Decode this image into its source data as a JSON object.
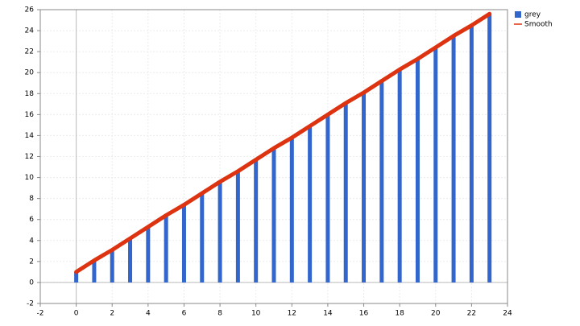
{
  "chart_data": {
    "type": "bar",
    "x": [
      0,
      1,
      2,
      3,
      4,
      5,
      6,
      7,
      8,
      9,
      10,
      11,
      12,
      13,
      14,
      15,
      16,
      17,
      18,
      19,
      20,
      21,
      22,
      23
    ],
    "series": [
      {
        "name": "grey",
        "type": "bar",
        "color": "#3366cc",
        "values": [
          1,
          2.1,
          3.1,
          4.2,
          5.3,
          6.4,
          7.4,
          8.5,
          9.6,
          10.6,
          11.7,
          12.8,
          13.8,
          14.9,
          16,
          17.1,
          18.1,
          19.2,
          20.3,
          21.3,
          22.4,
          23.5,
          24.5,
          25.6
        ]
      },
      {
        "name": "Smooth",
        "type": "line",
        "color": "#dd3311",
        "values": [
          1,
          2.1,
          3.1,
          4.2,
          5.3,
          6.4,
          7.4,
          8.5,
          9.6,
          10.6,
          11.7,
          12.8,
          13.8,
          14.9,
          16,
          17.1,
          18.1,
          19.2,
          20.3,
          21.3,
          22.4,
          23.5,
          24.5,
          25.6
        ]
      }
    ],
    "xlim": [
      -2,
      24
    ],
    "xticks": [
      -2,
      0,
      2,
      4,
      6,
      8,
      10,
      12,
      14,
      16,
      18,
      20,
      22,
      24
    ],
    "ylim": [
      -2,
      26
    ],
    "yticks": [
      -2,
      0,
      2,
      4,
      6,
      8,
      10,
      12,
      14,
      16,
      18,
      20,
      22,
      24,
      26
    ],
    "grid": true,
    "legend": "top-right"
  }
}
